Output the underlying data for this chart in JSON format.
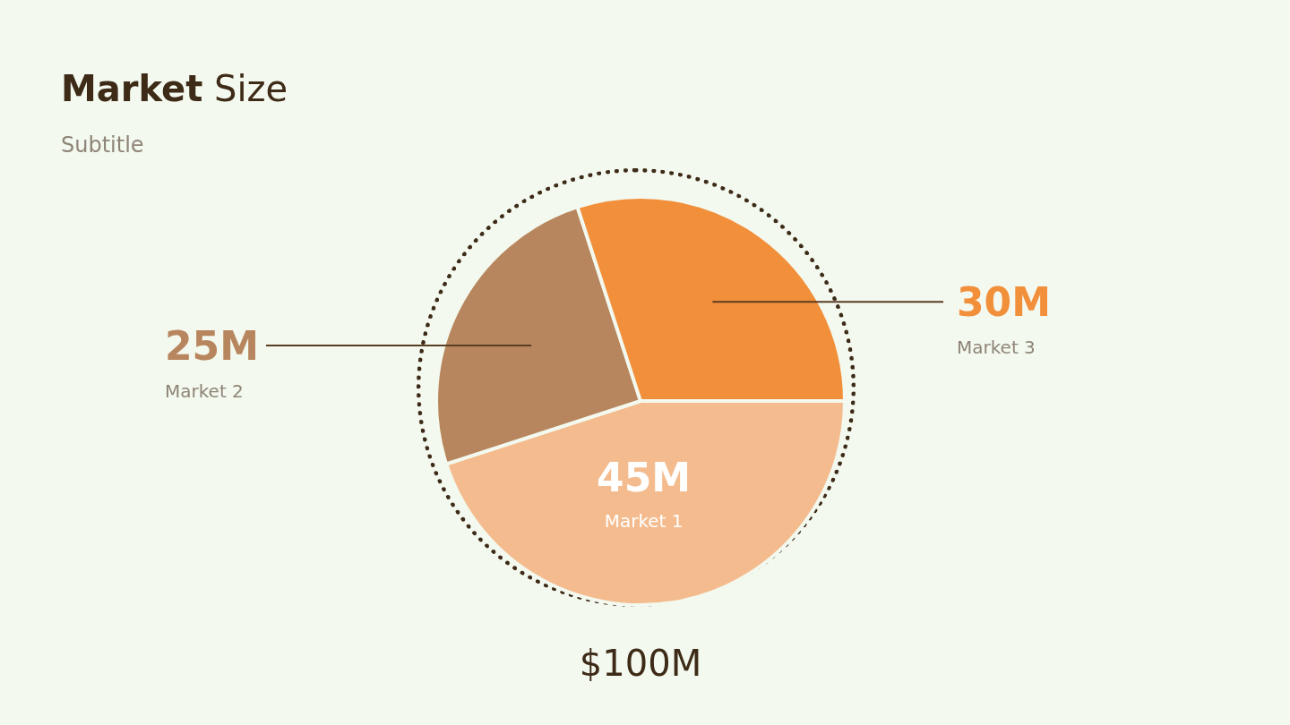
{
  "chart_data": {
    "type": "pie",
    "title": "Market Size",
    "subtitle": "Subtitle",
    "categories": [
      "Market 1",
      "Market 2",
      "Market 3"
    ],
    "values": [
      45,
      25,
      30
    ],
    "value_labels": [
      "45M",
      "25M",
      "30M"
    ],
    "colors": [
      "#f4bc8e",
      "#b8865e",
      "#f28f3b"
    ],
    "annotations": [
      "$100M"
    ],
    "legend": false
  }
}
